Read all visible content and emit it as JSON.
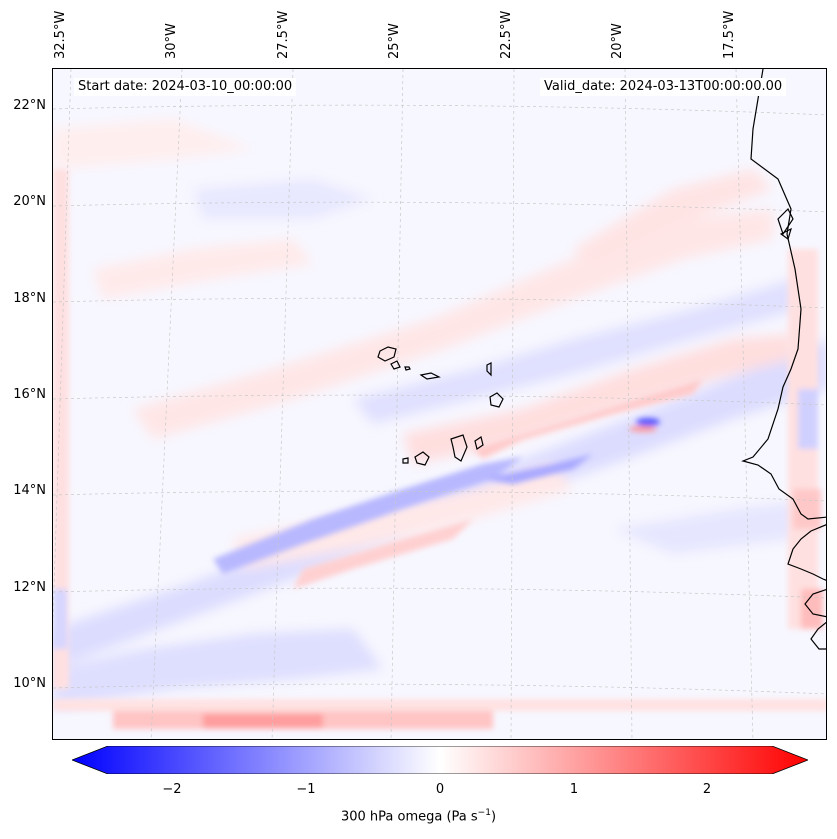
{
  "header": {
    "start_date": "Start date: 2024-03-10_00:00:00",
    "valid_date": "Valid_date: 2024-03-13T00:00:00.00"
  },
  "axes": {
    "lon_labels": [
      "32.5°W",
      "30°W",
      "27.5°W",
      "25°W",
      "22.5°W",
      "20°W",
      "17.5°W"
    ],
    "lat_labels": [
      "22°N",
      "20°N",
      "18°N",
      "16°N",
      "14°N",
      "12°N",
      "10°N"
    ]
  },
  "colorbar": {
    "label": "300 hPa omega (Pa s",
    "label_sup": "−1",
    "label_end": ")",
    "ticks": [
      "−2",
      "−1",
      "0",
      "1",
      "2"
    ],
    "range": [
      -2.6,
      2.6
    ],
    "colors": {
      "neg": "#0000ff",
      "mid": "#ffffff",
      "pos": "#ff0000"
    }
  },
  "features": {
    "coastline_color": "#000000",
    "islands": [
      "Santo Antão",
      "São Vicente",
      "São Nicolau",
      "Sal",
      "Boa Vista",
      "Fogo",
      "Santiago",
      "Maio",
      "Brava"
    ]
  }
}
